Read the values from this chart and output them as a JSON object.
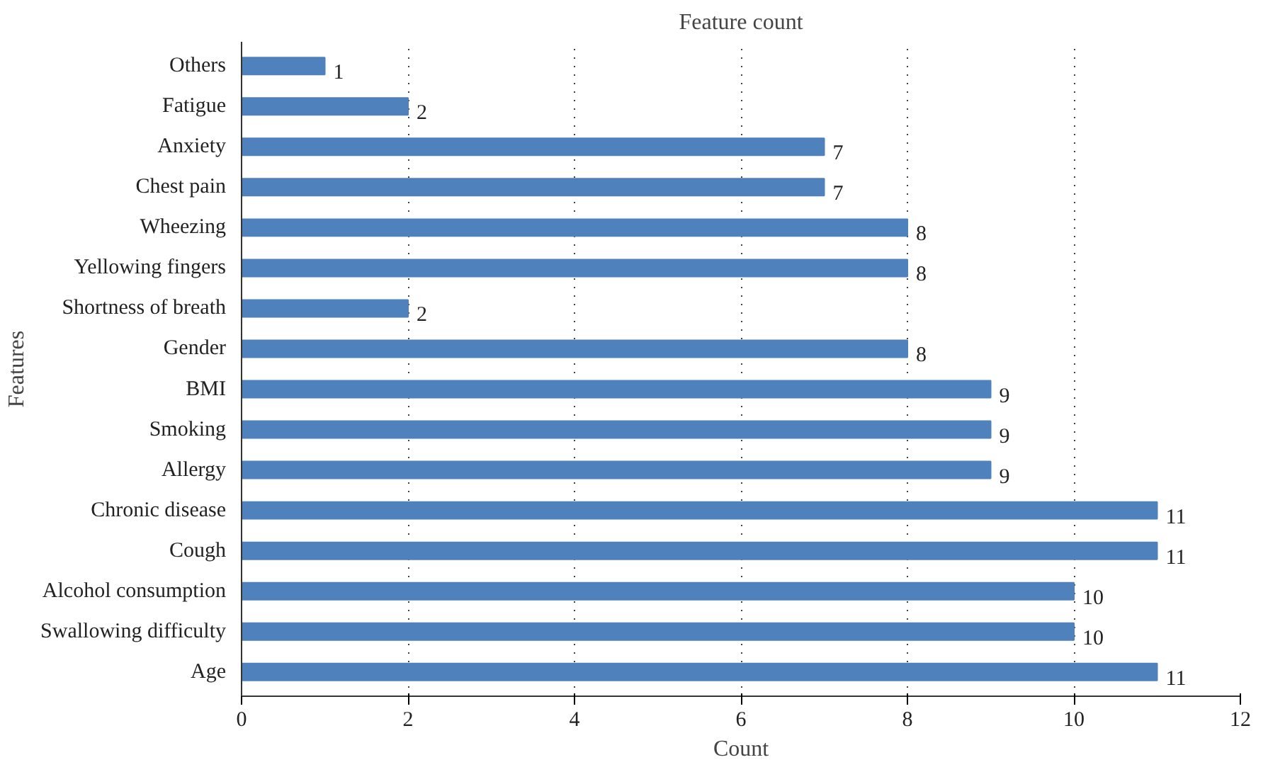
{
  "chart_data": {
    "type": "bar",
    "orientation": "horizontal",
    "title": "Feature count",
    "xlabel": "Count",
    "ylabel": "Features",
    "categories": [
      "Others",
      "Fatigue",
      "Anxiety",
      "Chest pain",
      "Wheezing",
      "Yellowing fingers",
      "Shortness of breath",
      "Gender",
      "BMI",
      "Smoking",
      "Allergy",
      "Chronic disease",
      "Cough",
      "Alcohol consumption",
      "Swallowing difficulty",
      "Age"
    ],
    "values": [
      1,
      2,
      7,
      7,
      8,
      8,
      2,
      8,
      9,
      9,
      9,
      11,
      11,
      10,
      10,
      11
    ],
    "color": "#4f81bd",
    "xlim": [
      0,
      12
    ],
    "xticks": [
      0,
      2,
      4,
      6,
      8,
      10,
      12
    ],
    "grid": "x",
    "data_labels": true
  }
}
